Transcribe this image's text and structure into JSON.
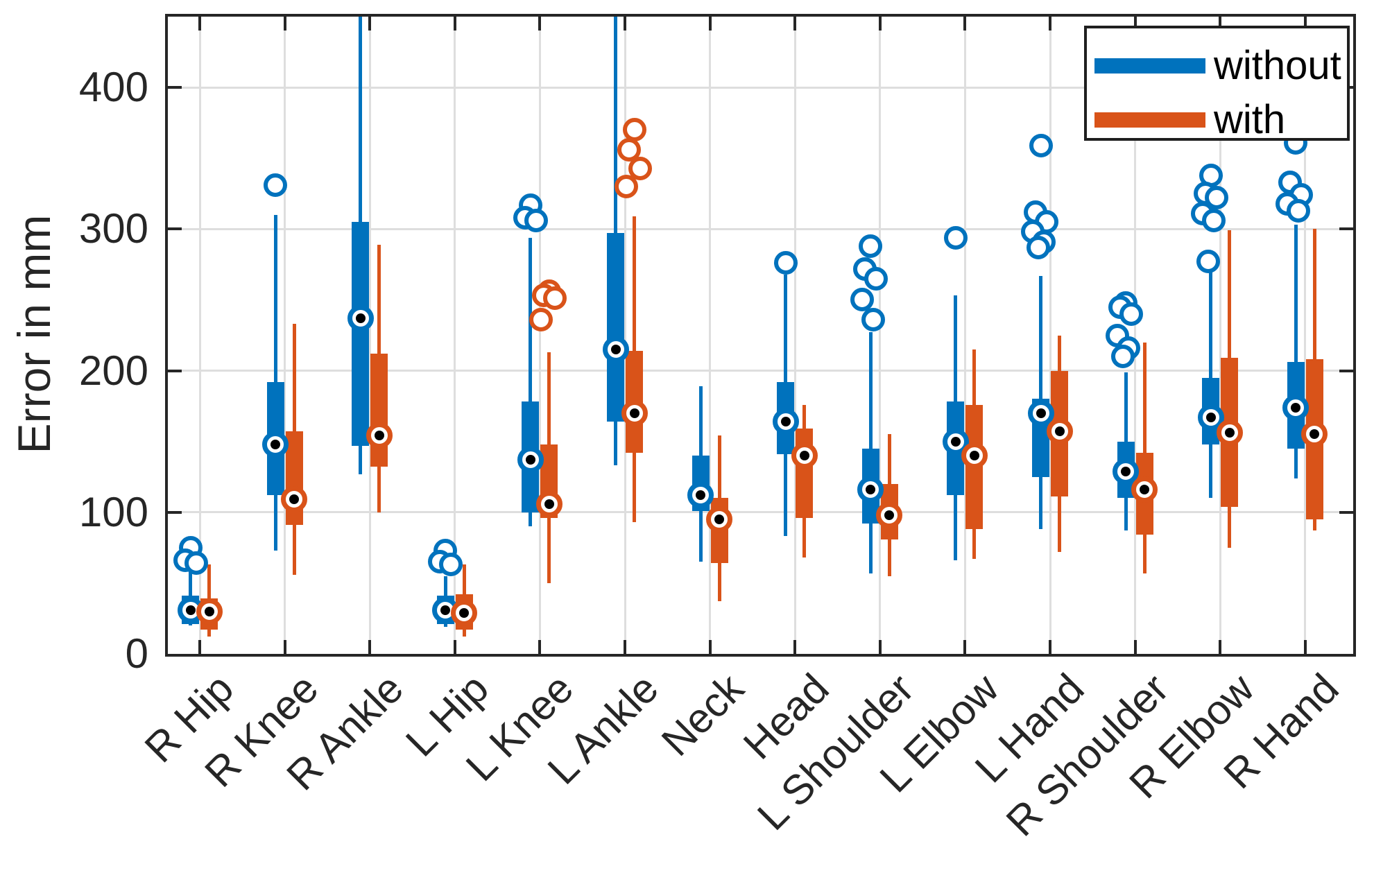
{
  "chart_data": {
    "type": "boxplot",
    "style": "grouped-compact-matlab",
    "title": "",
    "ylabel": "Error in mm",
    "ylim": [
      0,
      450
    ],
    "yticks": [
      0,
      100,
      200,
      300,
      400
    ],
    "grid": "on",
    "legend": {
      "position": "top-right",
      "entries": [
        "without",
        "with"
      ]
    },
    "categories": [
      "R Hip",
      "R Knee",
      "R Ankle",
      "L Hip",
      "L Knee",
      "L Ankle",
      "Neck",
      "Head",
      "L Shoulder",
      "L Elbow",
      "L Hand",
      "R Shoulder",
      "R Elbow",
      "R Hand"
    ],
    "series": [
      {
        "name": "without",
        "color": "#0072BD",
        "boxes": [
          {
            "whisker_low": 20,
            "q1": 21,
            "median": 31,
            "q3": 41,
            "whisker_high": 58,
            "outliers": [
              75,
              66,
              64
            ]
          },
          {
            "whisker_low": 73,
            "q1": 112,
            "median": 148,
            "q3": 192,
            "whisker_high": 310,
            "outliers": [
              331
            ]
          },
          {
            "whisker_low": 127,
            "q1": 147,
            "median": 237,
            "q3": 305,
            "whisker_high": 462,
            "outliers": []
          },
          {
            "whisker_low": 19,
            "q1": 21,
            "median": 31,
            "q3": 41,
            "whisker_high": 55,
            "outliers": [
              73,
              65,
              63
            ]
          },
          {
            "whisker_low": 90,
            "q1": 100,
            "median": 137,
            "q3": 178,
            "whisker_high": 294,
            "outliers": [
              317,
              308,
              306
            ]
          },
          {
            "whisker_low": 133,
            "q1": 164,
            "median": 215,
            "q3": 297,
            "whisker_high": 462,
            "outliers": []
          },
          {
            "whisker_low": 65,
            "q1": 101,
            "median": 112,
            "q3": 140,
            "whisker_high": 189,
            "outliers": []
          },
          {
            "whisker_low": 83,
            "q1": 141,
            "median": 164,
            "q3": 192,
            "whisker_high": 268,
            "outliers": [
              276
            ]
          },
          {
            "whisker_low": 57,
            "q1": 92,
            "median": 116,
            "q3": 145,
            "whisker_high": 227,
            "outliers": [
              288,
              272,
              265,
              250,
              236
            ]
          },
          {
            "whisker_low": 66,
            "q1": 112,
            "median": 150,
            "q3": 178,
            "whisker_high": 253,
            "outliers": [
              294
            ]
          },
          {
            "whisker_low": 88,
            "q1": 125,
            "median": 170,
            "q3": 180,
            "whisker_high": 267,
            "outliers": [
              359,
              312,
              305,
              298,
              291,
              287
            ]
          },
          {
            "whisker_low": 87,
            "q1": 110,
            "median": 129,
            "q3": 150,
            "whisker_high": 199,
            "outliers": [
              248,
              245,
              240,
              225,
              216,
              210
            ]
          },
          {
            "whisker_low": 110,
            "q1": 148,
            "median": 167,
            "q3": 195,
            "whisker_high": 270,
            "outliers": [
              338,
              325,
              322,
              311,
              306,
              277
            ]
          },
          {
            "whisker_low": 124,
            "q1": 145,
            "median": 174,
            "q3": 206,
            "whisker_high": 303,
            "outliers": [
              361,
              333,
              324,
              318,
              313
            ]
          }
        ]
      },
      {
        "name": "with",
        "color": "#D95319",
        "boxes": [
          {
            "whisker_low": 12,
            "q1": 17,
            "median": 30,
            "q3": 39,
            "whisker_high": 63,
            "outliers": []
          },
          {
            "whisker_low": 56,
            "q1": 91,
            "median": 109,
            "q3": 157,
            "whisker_high": 233,
            "outliers": []
          },
          {
            "whisker_low": 100,
            "q1": 132,
            "median": 154,
            "q3": 212,
            "whisker_high": 289,
            "outliers": []
          },
          {
            "whisker_low": 12,
            "q1": 17,
            "median": 29,
            "q3": 42,
            "whisker_high": 63,
            "outliers": []
          },
          {
            "whisker_low": 50,
            "q1": 96,
            "median": 106,
            "q3": 148,
            "whisker_high": 213,
            "outliers": [
              256,
              253,
              251,
              236
            ]
          },
          {
            "whisker_low": 93,
            "q1": 142,
            "median": 170,
            "q3": 214,
            "whisker_high": 309,
            "outliers": [
              370,
              356,
              343,
              330
            ]
          },
          {
            "whisker_low": 37,
            "q1": 64,
            "median": 95,
            "q3": 110,
            "whisker_high": 154,
            "outliers": []
          },
          {
            "whisker_low": 68,
            "q1": 96,
            "median": 140,
            "q3": 159,
            "whisker_high": 176,
            "outliers": []
          },
          {
            "whisker_low": 55,
            "q1": 81,
            "median": 98,
            "q3": 120,
            "whisker_high": 155,
            "outliers": []
          },
          {
            "whisker_low": 67,
            "q1": 88,
            "median": 140,
            "q3": 176,
            "whisker_high": 215,
            "outliers": []
          },
          {
            "whisker_low": 72,
            "q1": 111,
            "median": 157,
            "q3": 200,
            "whisker_high": 225,
            "outliers": []
          },
          {
            "whisker_low": 57,
            "q1": 84,
            "median": 116,
            "q3": 142,
            "whisker_high": 220,
            "outliers": []
          },
          {
            "whisker_low": 75,
            "q1": 104,
            "median": 156,
            "q3": 209,
            "whisker_high": 299,
            "outliers": []
          },
          {
            "whisker_low": 87,
            "q1": 95,
            "median": 155,
            "q3": 208,
            "whisker_high": 300,
            "outliers": []
          }
        ]
      }
    ],
    "colors": {
      "grid": "#dedede",
      "axis": "#262626",
      "outlier_fill": "#ffffff",
      "median_dot": "#000000"
    }
  }
}
